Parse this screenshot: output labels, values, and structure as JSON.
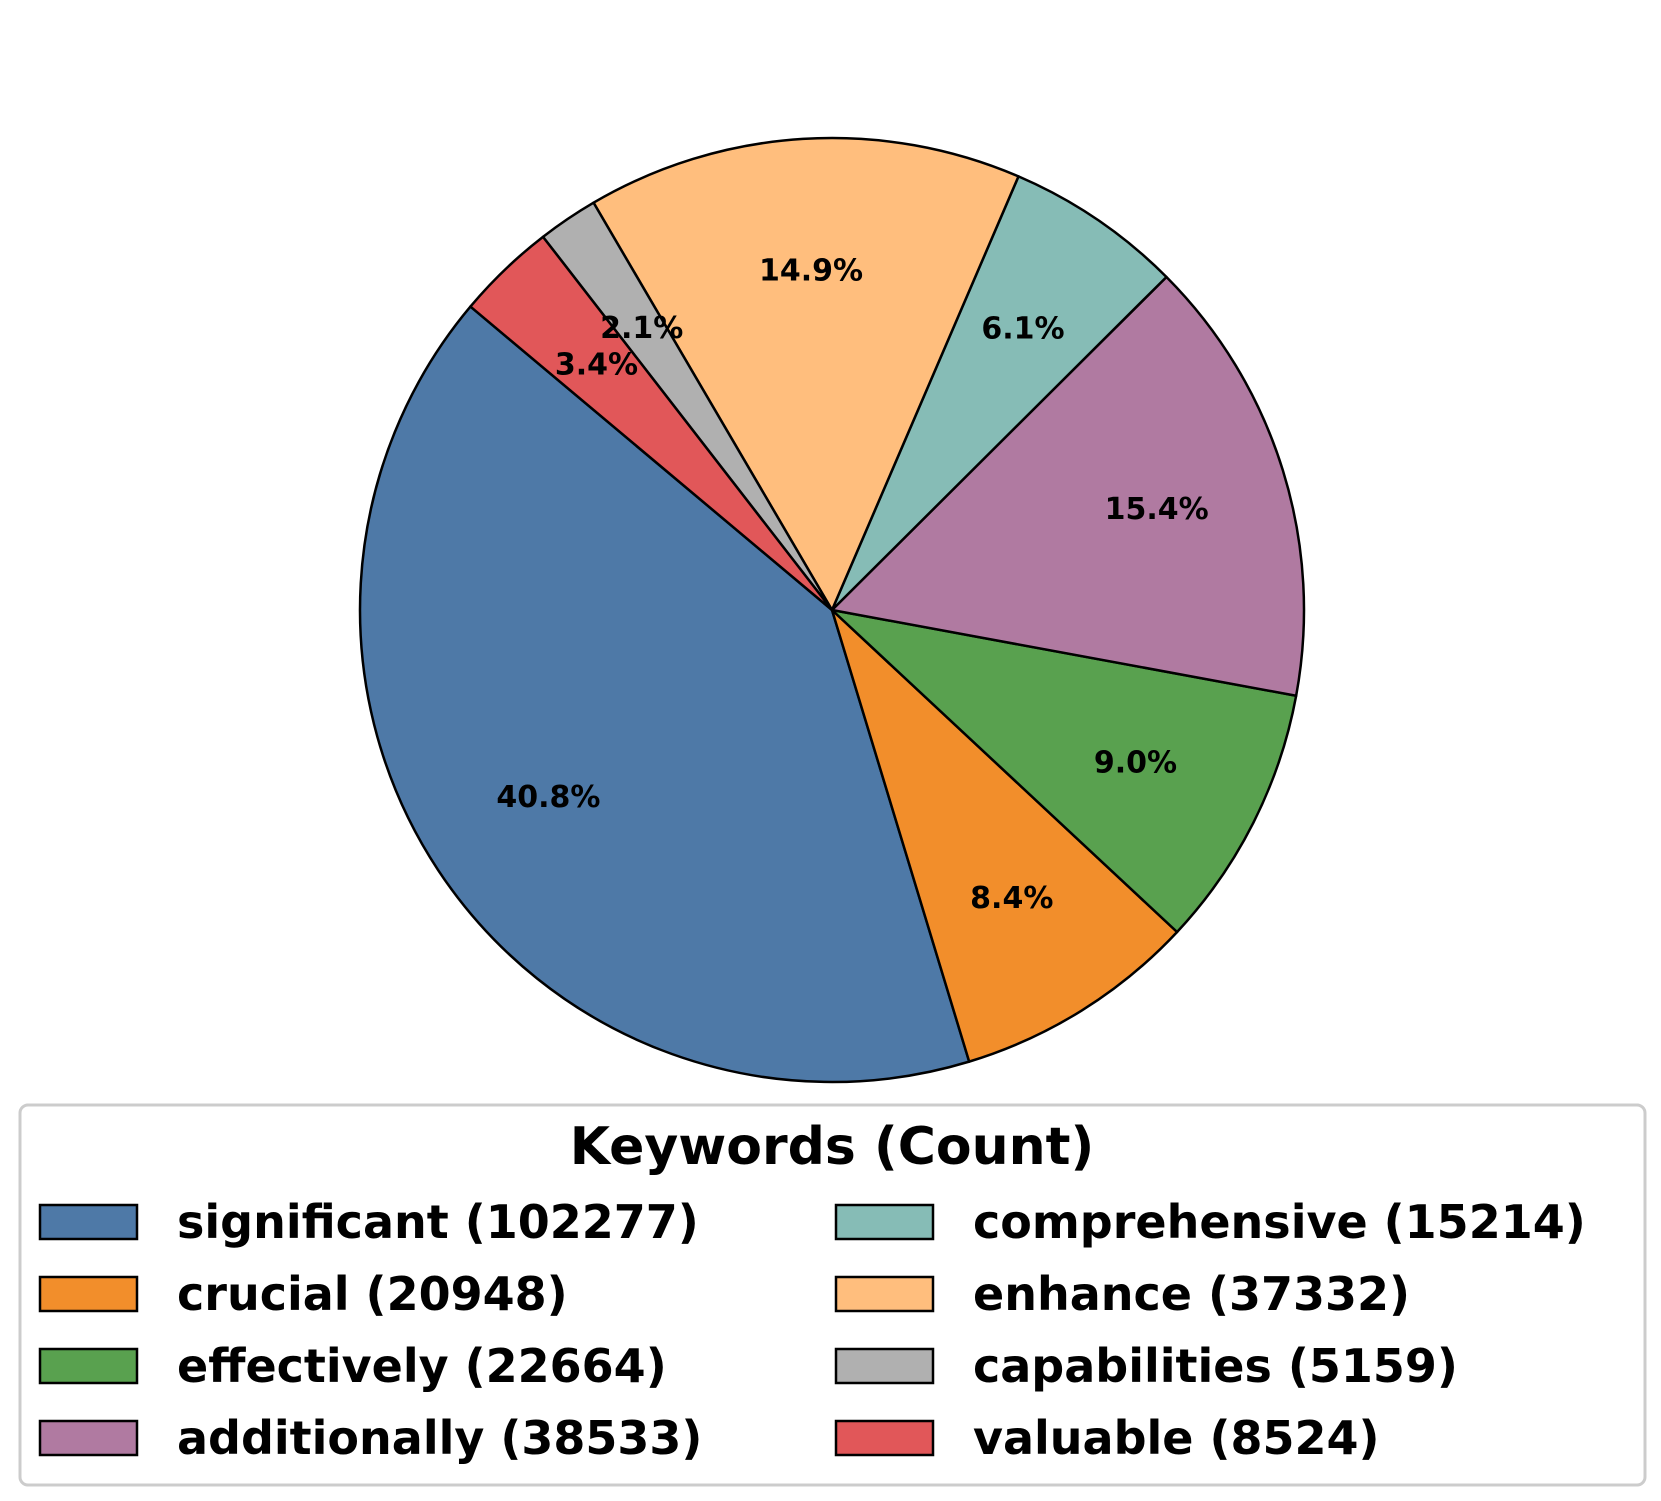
{
  "chart_data": {
    "type": "pie",
    "title": "",
    "start_angle_deg": 140,
    "legend": {
      "title": "Keywords (Count)",
      "placement": "bottom",
      "columns": 2
    },
    "slices": [
      {
        "label": "significant (102277)",
        "keyword": "significant",
        "value": 102277,
        "pct_label": "40.8%",
        "color": "#4e79a7"
      },
      {
        "label": "crucial (20948)",
        "keyword": "crucial",
        "value": 20948,
        "pct_label": "8.4%",
        "color": "#f28e2b"
      },
      {
        "label": "effectively (22664)",
        "keyword": "effectively",
        "value": 22664,
        "pct_label": "9.0%",
        "color": "#59a14f"
      },
      {
        "label": "additionally (38533)",
        "keyword": "additionally",
        "value": 38533,
        "pct_label": "15.4%",
        "color": "#b07aa1"
      },
      {
        "label": "comprehensive (15214)",
        "keyword": "comprehensive",
        "value": 15214,
        "pct_label": "6.1%",
        "color": "#86bcb6"
      },
      {
        "label": "enhance (37332)",
        "keyword": "enhance",
        "value": 37332,
        "pct_label": "14.9%",
        "color": "#ffbe7d"
      },
      {
        "label": "capabilities (5159)",
        "keyword": "capabilities",
        "value": 5159,
        "pct_label": "2.1%",
        "color": "#b0b0b0"
      },
      {
        "label": "valuable (8524)",
        "keyword": "valuable",
        "value": 8524,
        "pct_label": "3.4%",
        "color": "#e15759"
      }
    ]
  }
}
